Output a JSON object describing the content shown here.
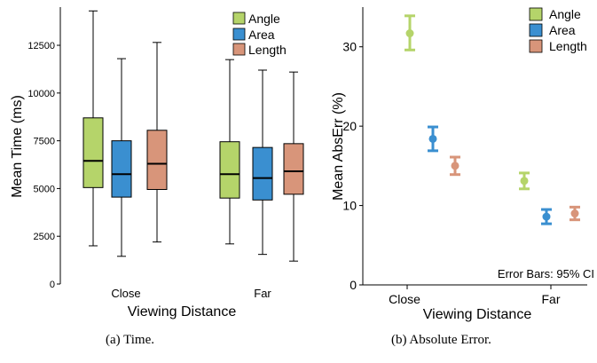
{
  "chart_data": [
    {
      "type": "box",
      "categories": [
        "Close",
        "Far"
      ],
      "xlabel": "Viewing Distance",
      "ylabel": "Mean Time (ms)",
      "ylim": [
        0,
        14500
      ],
      "yticks": [
        0,
        2500,
        5000,
        7500,
        10000,
        12500
      ],
      "ytick_labels": [
        "0",
        "2500",
        "5000",
        "7500",
        "10000",
        "12500"
      ],
      "legend": {
        "placement": "top-right",
        "entries": [
          "Angle",
          "Area",
          "Length"
        ]
      },
      "series": [
        {
          "name": "Angle",
          "color": "#b5d46a",
          "boxes": [
            {
              "category": "Close",
              "min": 2000,
              "q1": 5050,
              "median": 6450,
              "q3": 8700,
              "max": 14300
            },
            {
              "category": "Far",
              "min": 2100,
              "q1": 4500,
              "median": 5750,
              "q3": 7450,
              "max": 11750
            }
          ]
        },
        {
          "name": "Area",
          "color": "#3a8fd0",
          "boxes": [
            {
              "category": "Close",
              "min": 1450,
              "q1": 4550,
              "median": 5750,
              "q3": 7500,
              "max": 11800
            },
            {
              "category": "Far",
              "min": 1550,
              "q1": 4400,
              "median": 5550,
              "q3": 7150,
              "max": 11200
            }
          ]
        },
        {
          "name": "Length",
          "color": "#d8957a",
          "boxes": [
            {
              "category": "Close",
              "min": 2200,
              "q1": 4950,
              "median": 6300,
              "q3": 8050,
              "max": 12650
            },
            {
              "category": "Far",
              "min": 1200,
              "q1": 4700,
              "median": 5900,
              "q3": 7350,
              "max": 11100
            }
          ]
        }
      ]
    },
    {
      "type": "scatter",
      "categories": [
        "Close",
        "Far"
      ],
      "xlabel": "Viewing Distance",
      "ylabel": "Mean AbsErr (%)",
      "ylim": [
        0,
        35
      ],
      "yticks": [
        0,
        10,
        20,
        30
      ],
      "ytick_labels": [
        "0",
        "10",
        "20",
        "30"
      ],
      "annotation": "Error Bars: 95% CI",
      "legend": {
        "placement": "top-right",
        "entries": [
          "Angle",
          "Area",
          "Length"
        ]
      },
      "series": [
        {
          "name": "Angle",
          "color": "#b5d46a",
          "points": [
            {
              "category": "Close",
              "mean": 31.7,
              "lo": 29.6,
              "hi": 33.9
            },
            {
              "category": "Far",
              "mean": 13.1,
              "lo": 12.1,
              "hi": 14.1
            }
          ]
        },
        {
          "name": "Area",
          "color": "#3a8fd0",
          "points": [
            {
              "category": "Close",
              "mean": 18.4,
              "lo": 16.9,
              "hi": 19.9
            },
            {
              "category": "Far",
              "mean": 8.6,
              "lo": 7.7,
              "hi": 9.5
            }
          ]
        },
        {
          "name": "Length",
          "color": "#d8957a",
          "points": [
            {
              "category": "Close",
              "mean": 15.0,
              "lo": 13.9,
              "hi": 16.1
            },
            {
              "category": "Far",
              "mean": 9.0,
              "lo": 8.2,
              "hi": 9.8
            }
          ]
        }
      ]
    }
  ],
  "captions": [
    "(a) Time.",
    "(b) Absolute Error."
  ]
}
